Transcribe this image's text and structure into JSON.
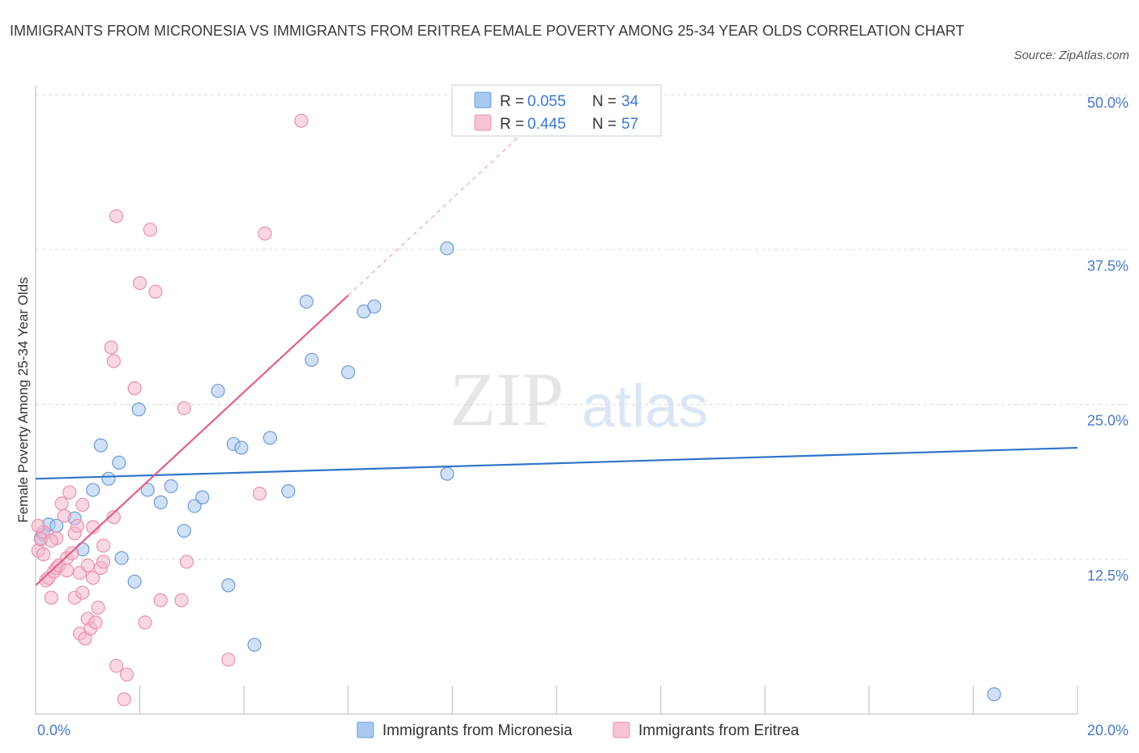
{
  "title": "IMMIGRANTS FROM MICRONESIA VS IMMIGRANTS FROM ERITREA FEMALE POVERTY AMONG 25-34 YEAR OLDS CORRELATION CHART",
  "source": "Source: ZipAtlas.com",
  "watermark": {
    "zip": "ZIP",
    "atlas": "atlas"
  },
  "colors": {
    "blue_fill": "#a9c8f0",
    "blue_stroke": "#6d9bd8",
    "blue_line": "#2f74cc",
    "pink_fill": "#f6b8cb",
    "pink_stroke": "#e891ad",
    "pink_line": "#e0608a",
    "grid": "#d9d9d9",
    "tick_text": "#4a78c4"
  },
  "chart_data": {
    "type": "scatter",
    "xlabel": "",
    "ylabel": "Female Poverty Among 25-34 Year Olds",
    "xlim": [
      0,
      20
    ],
    "ylim": [
      0,
      50
    ],
    "x_tick_labels": [
      "0.0%",
      "20.0%"
    ],
    "y_ticks": [
      12.5,
      25.0,
      37.5,
      50.0
    ],
    "y_tick_labels": [
      "12.5%",
      "25.0%",
      "37.5%",
      "50.0%"
    ],
    "grid": true,
    "legend": {
      "placement": "top-center",
      "entries": [
        {
          "r_label": "R = ",
          "r_value": "0.055",
          "n_label": "N = ",
          "n_value": "34"
        },
        {
          "r_label": "R = ",
          "r_value": "0.445",
          "n_label": "N = ",
          "n_value": "57"
        }
      ]
    },
    "series": [
      {
        "name": "Immigrants from Micronesia",
        "color": "blue",
        "trend": {
          "x": [
            0,
            20
          ],
          "y": [
            19.0,
            21.5
          ],
          "style": "solid"
        },
        "points": [
          [
            0.15,
            14.5
          ],
          [
            0.25,
            15.3
          ],
          [
            0.4,
            15.2
          ],
          [
            0.75,
            15.8
          ],
          [
            0.9,
            13.3
          ],
          [
            1.1,
            18.1
          ],
          [
            1.25,
            21.7
          ],
          [
            1.4,
            19.0
          ],
          [
            1.6,
            20.3
          ],
          [
            1.65,
            12.6
          ],
          [
            1.9,
            10.7
          ],
          [
            1.98,
            24.6
          ],
          [
            2.15,
            18.1
          ],
          [
            2.4,
            17.1
          ],
          [
            2.6,
            18.4
          ],
          [
            2.85,
            14.8
          ],
          [
            3.05,
            16.8
          ],
          [
            3.2,
            17.5
          ],
          [
            3.5,
            26.1
          ],
          [
            3.7,
            10.4
          ],
          [
            3.8,
            21.8
          ],
          [
            3.95,
            21.5
          ],
          [
            4.2,
            5.6
          ],
          [
            4.5,
            22.3
          ],
          [
            4.85,
            18.0
          ],
          [
            5.2,
            33.3
          ],
          [
            5.3,
            28.6
          ],
          [
            6.0,
            27.6
          ],
          [
            6.3,
            32.5
          ],
          [
            6.5,
            32.9
          ],
          [
            7.9,
            19.4
          ],
          [
            7.9,
            37.6
          ],
          [
            18.4,
            1.6
          ],
          [
            0.1,
            14.2
          ]
        ]
      },
      {
        "name": "Immigrants from Eritrea",
        "color": "pink",
        "trend": {
          "x": [
            0,
            6.0
          ],
          "y": [
            10.4,
            33.8
          ],
          "style": "solid",
          "dashed_extension_to": [
            9.5,
            47.5
          ]
        },
        "points": [
          [
            0.05,
            13.2
          ],
          [
            0.1,
            14.1
          ],
          [
            0.15,
            14.7
          ],
          [
            0.2,
            10.8
          ],
          [
            0.25,
            11.0
          ],
          [
            0.3,
            9.4
          ],
          [
            0.35,
            11.5
          ],
          [
            0.4,
            11.8
          ],
          [
            0.45,
            12.0
          ],
          [
            0.5,
            17.0
          ],
          [
            0.55,
            16.0
          ],
          [
            0.6,
            12.6
          ],
          [
            0.65,
            17.9
          ],
          [
            0.7,
            13.0
          ],
          [
            0.75,
            14.6
          ],
          [
            0.75,
            9.4
          ],
          [
            0.8,
            15.2
          ],
          [
            0.85,
            6.5
          ],
          [
            0.85,
            11.4
          ],
          [
            0.9,
            16.9
          ],
          [
            0.9,
            9.8
          ],
          [
            0.95,
            6.1
          ],
          [
            1.0,
            7.7
          ],
          [
            1.0,
            12.0
          ],
          [
            1.05,
            6.9
          ],
          [
            1.1,
            15.1
          ],
          [
            1.1,
            11.0
          ],
          [
            1.15,
            7.4
          ],
          [
            1.2,
            8.6
          ],
          [
            1.25,
            11.8
          ],
          [
            1.3,
            12.3
          ],
          [
            1.3,
            13.6
          ],
          [
            1.45,
            29.6
          ],
          [
            1.5,
            28.5
          ],
          [
            1.5,
            15.9
          ],
          [
            1.55,
            40.2
          ],
          [
            1.55,
            3.9
          ],
          [
            1.7,
            1.2
          ],
          [
            1.75,
            3.2
          ],
          [
            1.9,
            26.3
          ],
          [
            2.0,
            34.8
          ],
          [
            2.1,
            7.4
          ],
          [
            2.2,
            39.1
          ],
          [
            2.3,
            34.1
          ],
          [
            2.4,
            9.2
          ],
          [
            2.8,
            9.2
          ],
          [
            2.85,
            24.7
          ],
          [
            2.9,
            12.3
          ],
          [
            3.7,
            4.4
          ],
          [
            4.3,
            17.8
          ],
          [
            4.4,
            38.8
          ],
          [
            5.1,
            47.9
          ],
          [
            0.4,
            14.2
          ],
          [
            0.6,
            11.6
          ],
          [
            0.3,
            14.0
          ],
          [
            0.15,
            12.9
          ],
          [
            0.05,
            15.2
          ]
        ]
      }
    ]
  },
  "bottom_legend": {
    "items": [
      {
        "label": "Immigrants from Micronesia"
      },
      {
        "label": "Immigrants from Eritrea"
      }
    ]
  }
}
